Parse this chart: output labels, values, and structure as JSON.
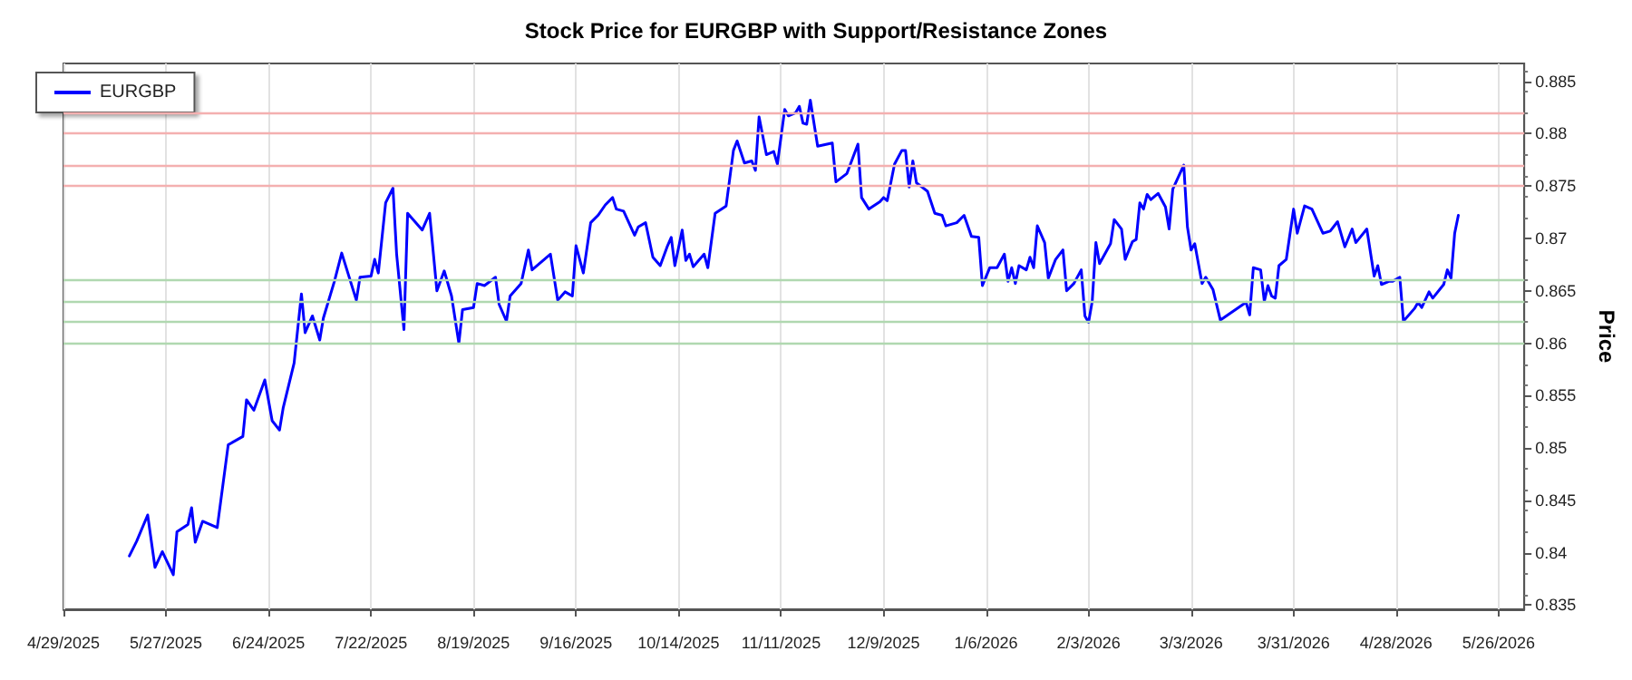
{
  "chart_data": {
    "type": "line",
    "title": "Stock Price for EURGBP with Support/Resistance Zones",
    "ylabel": "Price",
    "xlim": [
      "2025-04-29",
      "2026-06-02"
    ],
    "xticks": [
      {
        "value": "2025-04-29",
        "label": "4/29/2025"
      },
      {
        "value": "2025-05-27",
        "label": "5/27/2025"
      },
      {
        "value": "2025-06-24",
        "label": "6/24/2025"
      },
      {
        "value": "2025-07-22",
        "label": "7/22/2025"
      },
      {
        "value": "2025-08-19",
        "label": "8/19/2025"
      },
      {
        "value": "2025-09-16",
        "label": "9/16/2025"
      },
      {
        "value": "2025-10-14",
        "label": "10/14/2025"
      },
      {
        "value": "2025-11-11",
        "label": "11/11/2025"
      },
      {
        "value": "2025-12-09",
        "label": "12/9/2025"
      },
      {
        "value": "2026-01-06",
        "label": "1/6/2026"
      },
      {
        "value": "2026-02-03",
        "label": "2/3/2026"
      },
      {
        "value": "2026-03-03",
        "label": "3/3/2026"
      },
      {
        "value": "2026-03-31",
        "label": "3/31/2026"
      },
      {
        "value": "2026-04-28",
        "label": "4/28/2026"
      },
      {
        "value": "2026-05-26",
        "label": "5/26/2026"
      }
    ],
    "ylim": [
      0.8346,
      0.8867
    ],
    "yticks": [
      0.835,
      0.84,
      0.845,
      0.85,
      0.855,
      0.86,
      0.865,
      0.87,
      0.875,
      0.88,
      0.885
    ],
    "grid": "x",
    "legend": "top left",
    "line_style": "solid",
    "marker": "none",
    "series": [
      {
        "name": "EURGBP",
        "color": "#0000ff",
        "x": [
          "2025-05-17",
          "2025-05-19",
          "2025-05-22",
          "2025-05-24",
          "2025-05-26",
          "2025-05-29",
          "2025-05-30",
          "2025-06-02",
          "2025-06-03",
          "2025-06-04",
          "2025-06-06",
          "2025-06-10",
          "2025-06-13",
          "2025-06-17",
          "2025-06-18",
          "2025-06-20",
          "2025-06-23",
          "2025-06-25",
          "2025-06-27",
          "2025-06-28",
          "2025-07-01",
          "2025-07-03",
          "2025-07-04",
          "2025-07-06",
          "2025-07-08",
          "2025-07-09",
          "2025-07-12",
          "2025-07-14",
          "2025-07-18",
          "2025-07-19",
          "2025-07-22",
          "2025-07-23",
          "2025-07-24",
          "2025-07-26",
          "2025-07-28",
          "2025-07-29",
          "2025-07-31",
          "2025-08-01",
          "2025-08-05",
          "2025-08-07",
          "2025-08-09",
          "2025-08-11",
          "2025-08-13",
          "2025-08-15",
          "2025-08-16",
          "2025-08-19",
          "2025-08-20",
          "2025-08-22",
          "2025-08-25",
          "2025-08-26",
          "2025-08-28",
          "2025-08-29",
          "2025-09-01",
          "2025-09-03",
          "2025-09-04",
          "2025-09-09",
          "2025-09-11",
          "2025-09-13",
          "2025-09-15",
          "2025-09-16",
          "2025-09-18",
          "2025-09-20",
          "2025-09-22",
          "2025-09-24",
          "2025-09-26",
          "2025-09-27",
          "2025-09-29",
          "2025-10-02",
          "2025-10-03",
          "2025-10-05",
          "2025-10-07",
          "2025-10-09",
          "2025-10-11",
          "2025-10-12",
          "2025-10-13",
          "2025-10-15",
          "2025-10-16",
          "2025-10-17",
          "2025-10-18",
          "2025-10-21",
          "2025-10-22",
          "2025-10-24",
          "2025-10-27",
          "2025-10-29",
          "2025-10-30",
          "2025-11-01",
          "2025-11-03",
          "2025-11-04",
          "2025-11-05",
          "2025-11-07",
          "2025-11-09",
          "2025-11-10",
          "2025-11-12",
          "2025-11-13",
          "2025-11-15",
          "2025-11-16",
          "2025-11-17",
          "2025-11-18",
          "2025-11-19",
          "2025-11-21",
          "2025-11-25",
          "2025-11-26",
          "2025-11-29",
          "2025-12-02",
          "2025-12-03",
          "2025-12-05",
          "2025-12-08",
          "2025-12-09",
          "2025-12-10",
          "2025-12-12",
          "2025-12-14",
          "2025-12-15",
          "2025-12-16",
          "2025-12-17",
          "2025-12-18",
          "2025-12-21",
          "2025-12-23",
          "2025-12-25",
          "2025-12-26",
          "2025-12-29",
          "2025-12-31",
          "2026-01-02",
          "2026-01-04",
          "2026-01-05",
          "2026-01-07",
          "2026-01-09",
          "2026-01-11",
          "2026-01-12",
          "2026-01-13",
          "2026-01-14",
          "2026-01-15",
          "2026-01-17",
          "2026-01-18",
          "2026-01-19",
          "2026-01-20",
          "2026-01-22",
          "2026-01-23",
          "2026-01-25",
          "2026-01-27",
          "2026-01-28",
          "2026-01-30",
          "2026-02-01",
          "2026-02-02",
          "2026-02-03",
          "2026-02-04",
          "2026-02-05",
          "2026-02-06",
          "2026-02-09",
          "2026-02-10",
          "2026-02-12",
          "2026-02-13",
          "2026-02-15",
          "2026-02-16",
          "2026-02-17",
          "2026-02-18",
          "2026-02-19",
          "2026-02-20",
          "2026-02-22",
          "2026-02-24",
          "2026-02-25",
          "2026-02-26",
          "2026-03-01",
          "2026-03-02",
          "2026-03-03",
          "2026-03-04",
          "2026-03-06",
          "2026-03-07",
          "2026-03-09",
          "2026-03-11",
          "2026-03-18",
          "2026-03-19",
          "2026-03-20",
          "2026-03-22",
          "2026-03-23",
          "2026-03-24",
          "2026-03-25",
          "2026-03-26",
          "2026-03-27",
          "2026-03-29",
          "2026-03-31",
          "2026-04-01",
          "2026-04-03",
          "2026-04-05",
          "2026-04-08",
          "2026-04-10",
          "2026-04-12",
          "2026-04-14",
          "2026-04-16",
          "2026-04-17",
          "2026-04-20",
          "2026-04-22",
          "2026-04-23",
          "2026-04-24",
          "2026-04-26",
          "2026-04-27",
          "2026-04-29",
          "2026-04-30",
          "2026-05-03",
          "2026-05-04",
          "2026-05-05",
          "2026-05-07",
          "2026-05-08",
          "2026-05-11",
          "2026-05-12",
          "2026-05-13",
          "2026-05-14",
          "2026-05-15"
        ],
        "values": [
          0.8397,
          0.8411,
          0.8436,
          0.8386,
          0.8401,
          0.8379,
          0.842,
          0.8427,
          0.8443,
          0.841,
          0.843,
          0.8424,
          0.8503,
          0.8511,
          0.8546,
          0.8536,
          0.8565,
          0.8526,
          0.8517,
          0.8538,
          0.8581,
          0.8647,
          0.861,
          0.8626,
          0.8603,
          0.8624,
          0.8659,
          0.8686,
          0.8641,
          0.8663,
          0.8664,
          0.868,
          0.8667,
          0.8734,
          0.8748,
          0.8685,
          0.8613,
          0.8724,
          0.8708,
          0.8724,
          0.865,
          0.8669,
          0.8645,
          0.86,
          0.8632,
          0.8634,
          0.8657,
          0.8655,
          0.8663,
          0.8637,
          0.8621,
          0.8645,
          0.8657,
          0.8689,
          0.867,
          0.8685,
          0.8641,
          0.8649,
          0.8645,
          0.8693,
          0.8667,
          0.8715,
          0.8722,
          0.8732,
          0.8739,
          0.8728,
          0.8726,
          0.8703,
          0.8711,
          0.8715,
          0.8682,
          0.8674,
          0.8693,
          0.8701,
          0.8674,
          0.8708,
          0.8679,
          0.8685,
          0.8673,
          0.8685,
          0.8672,
          0.8724,
          0.8731,
          0.8784,
          0.8793,
          0.8772,
          0.8774,
          0.8765,
          0.8816,
          0.878,
          0.8783,
          0.8771,
          0.8823,
          0.8817,
          0.882,
          0.8826,
          0.881,
          0.8809,
          0.8832,
          0.8788,
          0.8791,
          0.8754,
          0.8762,
          0.879,
          0.8739,
          0.8728,
          0.8735,
          0.8739,
          0.8736,
          0.8771,
          0.8784,
          0.8784,
          0.8749,
          0.8774,
          0.8753,
          0.8745,
          0.8724,
          0.8722,
          0.8712,
          0.8715,
          0.8722,
          0.8702,
          0.8701,
          0.8655,
          0.8672,
          0.8672,
          0.8685,
          0.8659,
          0.8672,
          0.8657,
          0.8674,
          0.867,
          0.8682,
          0.8672,
          0.8712,
          0.8696,
          0.8662,
          0.868,
          0.8689,
          0.865,
          0.8657,
          0.867,
          0.8626,
          0.862,
          0.864,
          0.8696,
          0.8676,
          0.8695,
          0.8718,
          0.8709,
          0.868,
          0.8697,
          0.8699,
          0.8734,
          0.8728,
          0.8742,
          0.8737,
          0.8743,
          0.873,
          0.8709,
          0.8747,
          0.877,
          0.8711,
          0.8689,
          0.8695,
          0.8657,
          0.8663,
          0.8651,
          0.8622,
          0.8639,
          0.8627,
          0.8672,
          0.867,
          0.864,
          0.8655,
          0.8645,
          0.8643,
          0.8674,
          0.868,
          0.8728,
          0.8705,
          0.8731,
          0.8728,
          0.8705,
          0.8707,
          0.8716,
          0.8692,
          0.8709,
          0.8696,
          0.8709,
          0.8664,
          0.8674,
          0.8656,
          0.8659,
          0.8659,
          0.8663,
          0.8621,
          0.8633,
          0.8639,
          0.8634,
          0.8649,
          0.8643,
          0.8656,
          0.867,
          0.8662,
          0.8705,
          0.8722
        ]
      }
    ],
    "ref_lines": [
      {
        "axis": "y",
        "value": 0.882,
        "color": "#f4b0b0"
      },
      {
        "axis": "y",
        "value": 0.88,
        "color": "#f4b0b0"
      },
      {
        "axis": "y",
        "value": 0.877,
        "color": "#f4b0b0"
      },
      {
        "axis": "y",
        "value": 0.875,
        "color": "#f4b0b0"
      },
      {
        "axis": "y",
        "value": 0.866,
        "color": "#b0d8b0"
      },
      {
        "axis": "y",
        "value": 0.864,
        "color": "#b0d8b0"
      },
      {
        "axis": "y",
        "value": 0.862,
        "color": "#b0d8b0"
      },
      {
        "axis": "y",
        "value": 0.86,
        "color": "#b0d8b0"
      }
    ]
  }
}
